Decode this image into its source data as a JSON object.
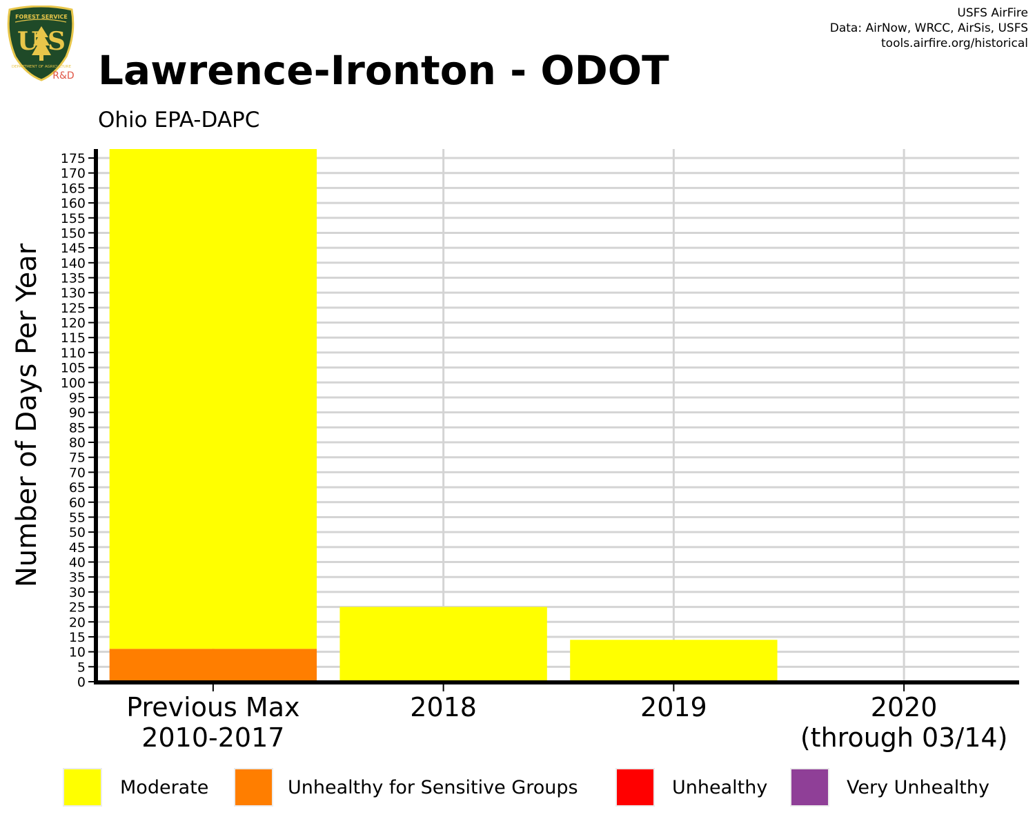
{
  "header": {
    "title": "Lawrence-Ironton - ODOT",
    "subtitle": "Ohio EPA-DAPC",
    "credits": [
      "USFS AirFire",
      "Data: AirNow, WRCC, AirSis, USFS",
      "tools.airfire.org/historical"
    ]
  },
  "logo": {
    "top_text": "FOREST SERVICE",
    "bottom_text": "DEPARTMENT OF AGRICULTURE",
    "letters": "U S",
    "tag": "R&D",
    "colors": {
      "shield": "#1f4a28",
      "border": "#e8c64a",
      "tag": "#e05545"
    }
  },
  "chart_data": {
    "type": "bar",
    "stacked": true,
    "ylabel": "Number of Days Per Year",
    "ylim": [
      0,
      178
    ],
    "y_ticks": [
      0,
      5,
      10,
      15,
      20,
      25,
      30,
      35,
      40,
      45,
      50,
      55,
      60,
      65,
      70,
      75,
      80,
      85,
      90,
      95,
      100,
      105,
      110,
      115,
      120,
      125,
      130,
      135,
      140,
      145,
      150,
      155,
      160,
      165,
      170,
      175
    ],
    "categories": [
      [
        "Previous Max",
        "2010-2017"
      ],
      [
        "2018"
      ],
      [
        "2019"
      ],
      [
        "2020",
        "(through 03/14)"
      ]
    ],
    "series": [
      {
        "name": "Unhealthy for Sensitive Groups",
        "color": "#ff7e00",
        "values": [
          11,
          0,
          0,
          0
        ]
      },
      {
        "name": "Moderate",
        "color": "#ffff00",
        "values": [
          167,
          25,
          14,
          0
        ]
      },
      {
        "name": "Unhealthy",
        "color": "#ff0000",
        "values": [
          0,
          0,
          0,
          0
        ]
      },
      {
        "name": "Very Unhealthy",
        "color": "#8f3f97",
        "values": [
          0,
          0,
          0,
          0
        ]
      }
    ],
    "legend": {
      "placement": "bottom",
      "entries": [
        {
          "label": "Moderate",
          "color": "#ffff00"
        },
        {
          "label": "Unhealthy for Sensitive Groups",
          "color": "#ff7e00"
        },
        {
          "label": "Unhealthy",
          "color": "#ff0000"
        },
        {
          "label": "Very Unhealthy",
          "color": "#8f3f97"
        }
      ]
    },
    "grid": true
  }
}
